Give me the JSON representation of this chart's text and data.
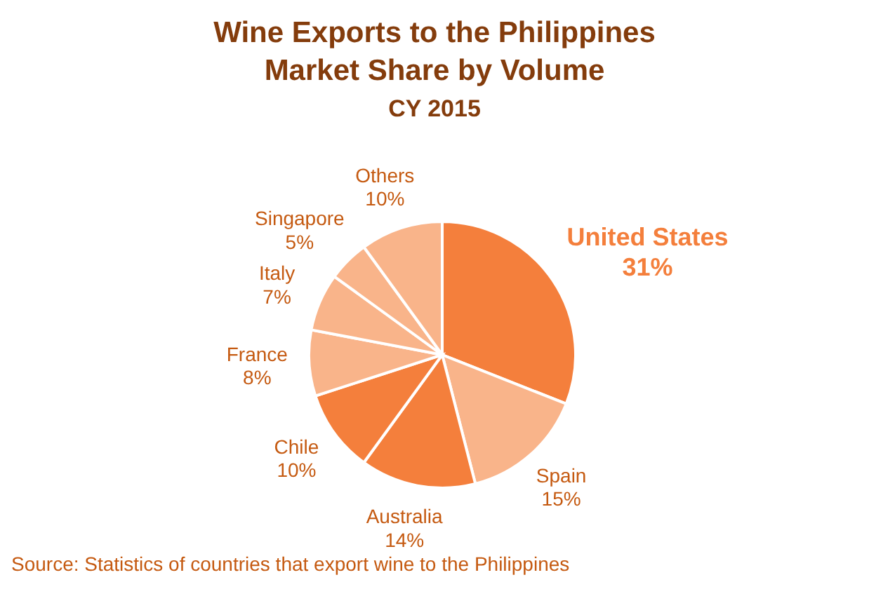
{
  "chart_data": {
    "type": "pie",
    "title": "Wine Exports to the Philippines Market Share by Volume",
    "subtitle": "CY 2015",
    "categories": [
      "United States",
      "Spain",
      "Australia",
      "Chile",
      "France",
      "Italy",
      "Singapore",
      "Others"
    ],
    "values": [
      31,
      15,
      14,
      10,
      8,
      7,
      5,
      10
    ],
    "colors": [
      "#f47f3c",
      "#f9b48a",
      "#f47f3c",
      "#f47f3c",
      "#f9b48a",
      "#f9b48a",
      "#f9b48a",
      "#f9b48a"
    ],
    "value_labels": [
      "31%",
      "15%",
      "14%",
      "10%",
      "8%",
      "7%",
      "5%",
      "10%"
    ],
    "annotations": [
      "Source: Statistics of countries that export wine to the Philippines"
    ]
  }
}
